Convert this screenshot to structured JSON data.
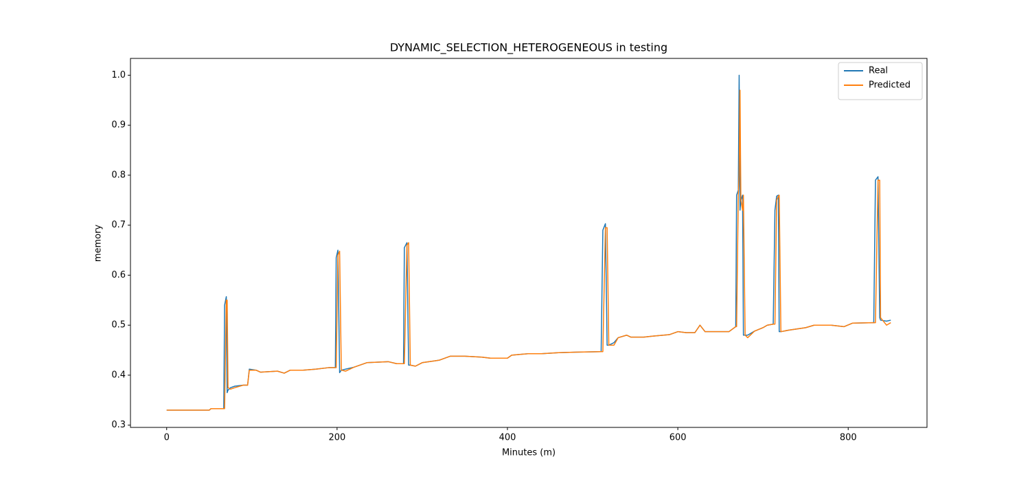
{
  "chart_data": {
    "type": "line",
    "title": "DYNAMIC_SELECTION_HETEROGENEOUS in testing",
    "x_label": "Minutes (m)",
    "y_label": "memory",
    "x": [
      0,
      50,
      52,
      67,
      68,
      70,
      71,
      72,
      75,
      80,
      90,
      95,
      97,
      105,
      110,
      130,
      138,
      145,
      160,
      175,
      190,
      198,
      199,
      201,
      203,
      205,
      210,
      220,
      235,
      260,
      270,
      278,
      279,
      282,
      284,
      286,
      292,
      300,
      320,
      333,
      350,
      370,
      380,
      400,
      405,
      425,
      440,
      460,
      480,
      510,
      512,
      515,
      517,
      519,
      525,
      530,
      540,
      545,
      560,
      570,
      590,
      600,
      610,
      620,
      626,
      632,
      660,
      668,
      669,
      671,
      672,
      673,
      674,
      676,
      677,
      679,
      682,
      690,
      700,
      705,
      712,
      714,
      716,
      718,
      719,
      721,
      730,
      750,
      760,
      780,
      795,
      805,
      830,
      832,
      835,
      837,
      838,
      845,
      850
    ],
    "series": [
      {
        "name": "Real",
        "color": "#1f77b4",
        "values": [
          0.33,
          0.33,
          0.333,
          0.333,
          0.54,
          0.557,
          0.365,
          0.37,
          0.375,
          0.378,
          0.38,
          0.38,
          0.412,
          0.41,
          0.406,
          0.408,
          0.404,
          0.41,
          0.41,
          0.412,
          0.415,
          0.415,
          0.635,
          0.65,
          0.405,
          0.41,
          0.412,
          0.416,
          0.425,
          0.427,
          0.423,
          0.423,
          0.655,
          0.665,
          0.42,
          0.42,
          0.418,
          0.425,
          0.43,
          0.438,
          0.438,
          0.436,
          0.434,
          0.434,
          0.44,
          0.443,
          0.443,
          0.445,
          0.446,
          0.447,
          0.69,
          0.703,
          0.46,
          0.46,
          0.465,
          0.475,
          0.48,
          0.476,
          0.476,
          0.478,
          0.481,
          0.487,
          0.485,
          0.485,
          0.5,
          0.487,
          0.487,
          0.497,
          0.76,
          0.77,
          1.0,
          0.73,
          0.75,
          0.76,
          0.48,
          0.48,
          0.48,
          0.488,
          0.495,
          0.5,
          0.502,
          0.73,
          0.758,
          0.76,
          0.487,
          0.487,
          0.49,
          0.495,
          0.5,
          0.5,
          0.497,
          0.504,
          0.505,
          0.79,
          0.797,
          0.515,
          0.51,
          0.508,
          0.51
        ]
      },
      {
        "name": "Predicted",
        "color": "#ff7f0e",
        "values": [
          0.33,
          0.33,
          0.333,
          0.333,
          0.333,
          0.55,
          0.55,
          0.375,
          0.372,
          0.375,
          0.38,
          0.38,
          0.41,
          0.41,
          0.406,
          0.408,
          0.404,
          0.41,
          0.41,
          0.412,
          0.415,
          0.415,
          0.415,
          0.64,
          0.648,
          0.41,
          0.408,
          0.416,
          0.425,
          0.427,
          0.423,
          0.423,
          0.423,
          0.66,
          0.665,
          0.42,
          0.418,
          0.425,
          0.43,
          0.438,
          0.438,
          0.436,
          0.434,
          0.434,
          0.44,
          0.443,
          0.443,
          0.445,
          0.446,
          0.447,
          0.447,
          0.695,
          0.695,
          0.46,
          0.46,
          0.475,
          0.48,
          0.476,
          0.476,
          0.478,
          0.481,
          0.487,
          0.485,
          0.485,
          0.5,
          0.487,
          0.487,
          0.497,
          0.497,
          0.76,
          0.8,
          0.97,
          0.75,
          0.73,
          0.76,
          0.48,
          0.475,
          0.488,
          0.495,
          0.5,
          0.502,
          0.502,
          0.75,
          0.758,
          0.76,
          0.487,
          0.49,
          0.495,
          0.5,
          0.5,
          0.497,
          0.504,
          0.505,
          0.505,
          0.79,
          0.79,
          0.515,
          0.5,
          0.505
        ]
      }
    ],
    "xlim": [
      -42.5,
      892.5
    ],
    "ylim": [
      0.2955,
      1.0336
    ],
    "xticks": [
      0,
      200,
      400,
      600,
      800
    ],
    "yticks": [
      0.3,
      0.4,
      0.5,
      0.6,
      0.7,
      0.8,
      0.9,
      {
        "value": 1,
        "label": "1.0"
      }
    ],
    "legend": "upper right"
  }
}
